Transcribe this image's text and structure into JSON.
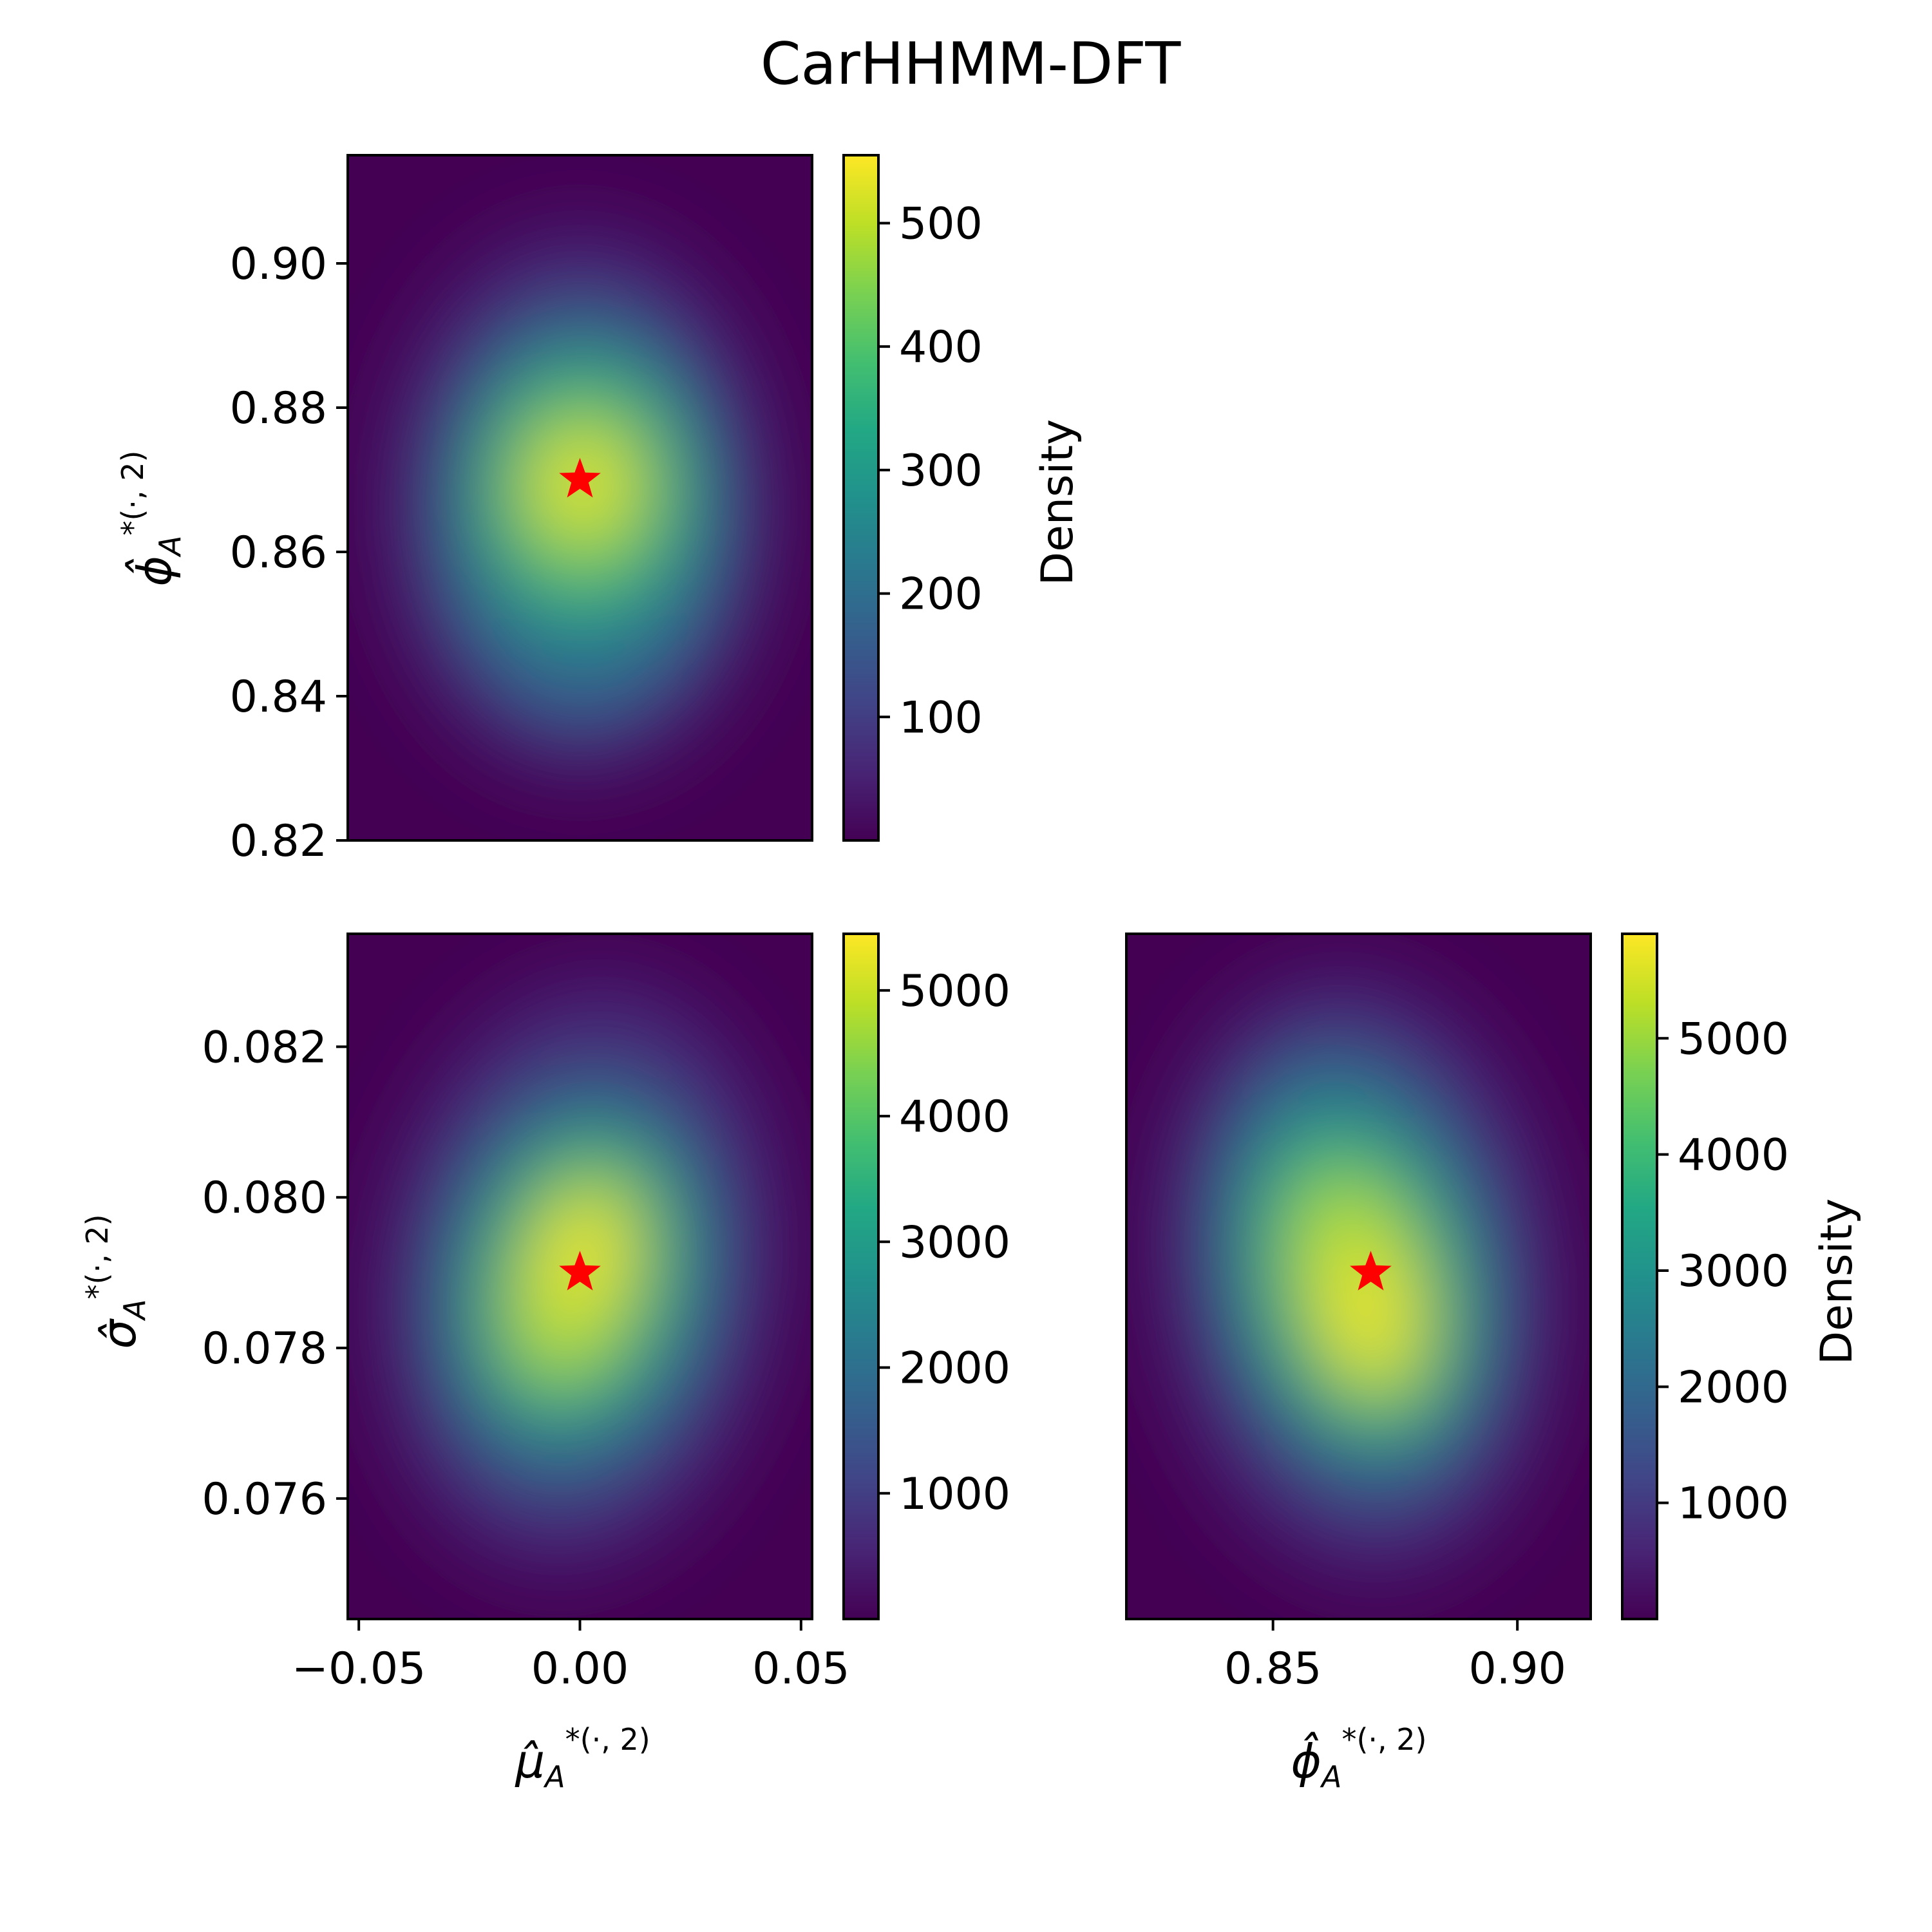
{
  "title": "CarHHMM-DFT",
  "colormap": "viridis",
  "marker": {
    "shape": "star",
    "color": "#ff0000"
  },
  "labels": {
    "mu_main": "μ̂",
    "phi_main": "ϕ̂",
    "sigma_main": "σ̂",
    "sub_A": "A",
    "sup": "*(·, 2)"
  },
  "chart_data": [
    {
      "type": "heatmap",
      "panel": "top-left",
      "xlim": [
        -0.0525,
        0.0525
      ],
      "ylim": [
        0.82,
        0.915
      ],
      "x_ticks_visible": false,
      "y_ticks": [
        "0.82",
        "0.84",
        "0.86",
        "0.88",
        "0.90"
      ],
      "y_tick_values": [
        0.82,
        0.84,
        0.86,
        0.88,
        0.9
      ],
      "ylabel": "ϕ̂ A *(·, 2)",
      "colorbar": {
        "label": "Density",
        "range": [
          0,
          555
        ],
        "ticks": [
          "100",
          "200",
          "300",
          "400",
          "500"
        ],
        "tick_values": [
          100,
          200,
          300,
          400,
          500
        ]
      },
      "peak": {
        "x": 0.0,
        "y": 0.868
      },
      "marker_point": {
        "x": 0.0,
        "y": 0.87
      }
    },
    {
      "type": "heatmap",
      "panel": "bottom-left",
      "xlim": [
        -0.0525,
        0.0525
      ],
      "ylim": [
        0.0744,
        0.0835
      ],
      "x_ticks": [
        "−0.05",
        "0.00",
        "0.05"
      ],
      "x_tick_values": [
        -0.05,
        0.0,
        0.05
      ],
      "y_ticks": [
        "0.076",
        "0.078",
        "0.080",
        "0.082"
      ],
      "y_tick_values": [
        0.076,
        0.078,
        0.08,
        0.082
      ],
      "xlabel": "μ̂ A *(·, 2)",
      "ylabel": "σ̂ A *(·, 2)",
      "colorbar": {
        "label": "",
        "range": [
          0,
          5450
        ],
        "ticks": [
          "1000",
          "2000",
          "3000",
          "4000",
          "5000"
        ],
        "tick_values": [
          1000,
          2000,
          3000,
          4000,
          5000
        ]
      },
      "peak": {
        "x": 0.0,
        "y": 0.079
      },
      "marker_point": {
        "x": 0.0,
        "y": 0.079
      }
    },
    {
      "type": "heatmap",
      "panel": "bottom-right",
      "xlim": [
        0.82,
        0.915
      ],
      "ylim": [
        0.0744,
        0.0835
      ],
      "x_ticks": [
        "0.85",
        "0.90"
      ],
      "x_tick_values": [
        0.85,
        0.9
      ],
      "y_ticks_visible": false,
      "xlabel": "ϕ̂ A *(·, 2)",
      "colorbar": {
        "label": "Density",
        "range": [
          0,
          5900
        ],
        "ticks": [
          "1000",
          "2000",
          "3000",
          "4000",
          "5000"
        ],
        "tick_values": [
          1000,
          2000,
          3000,
          4000,
          5000
        ]
      },
      "peak": {
        "x": 0.87,
        "y": 0.0786
      },
      "marker_point": {
        "x": 0.87,
        "y": 0.079
      }
    }
  ]
}
